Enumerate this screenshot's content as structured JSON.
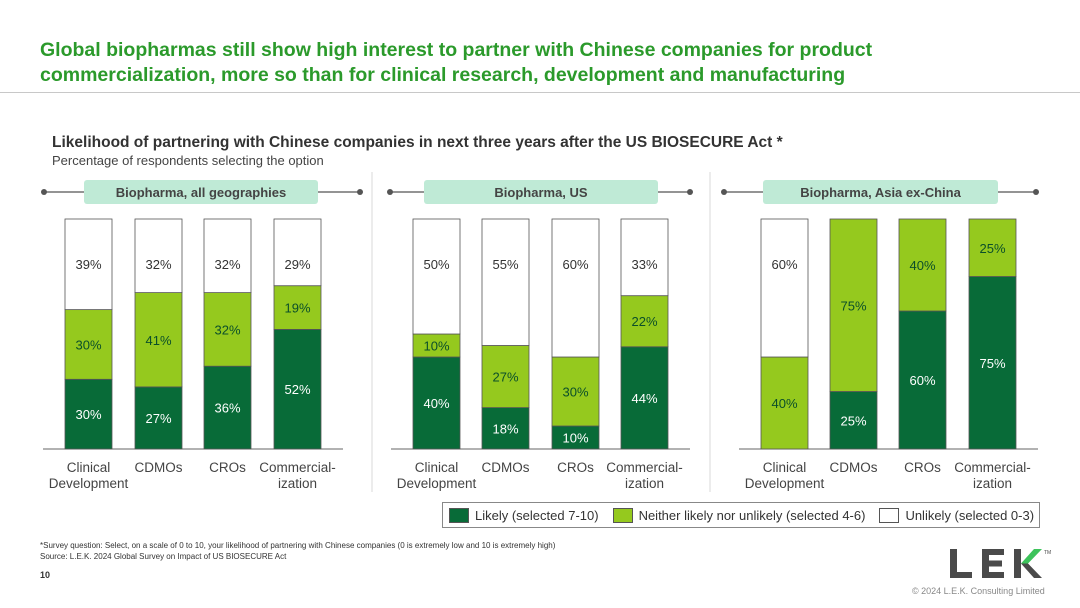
{
  "page": {
    "title": "Global biopharmas still show high interest to partner with Chinese companies for product commercialization, more so than for clinical research, development and manufacturing",
    "page_number": "10",
    "footnote": "*Survey question: Select, on a scale of 0 to 10, your likelihood of partnering with Chinese companies (0 is extremely low and 10 is extremely high)",
    "source": "Source:  L.E.K. 2024 Global Survey on Impact of US BIOSECURE Act",
    "copyright": "© 2024 L.E.K. Consulting Limited",
    "logo": "LEK",
    "logo_tm": "TM"
  },
  "chart_data": {
    "type": "bar",
    "stacked": true,
    "title": "Likelihood of partnering with Chinese companies in next three years after the US BIOSECURE Act *",
    "subtitle": "Percentage of respondents selecting the option",
    "ylim": [
      0,
      100
    ],
    "colors": {
      "likely": "#086b38",
      "neither": "#95c91e",
      "unlikely": "#ffffff",
      "panel_label_bg": "#bfead6",
      "title_green": "#2b9a2b"
    },
    "legend": [
      {
        "key": "likely",
        "label": "Likely (selected 7-10)"
      },
      {
        "key": "neither",
        "label": "Neither likely nor unlikely (selected 4-6)"
      },
      {
        "key": "unlikely",
        "label": "Unlikely (selected 0-3)"
      }
    ],
    "panels": [
      {
        "name": "Biopharma, all geographies",
        "categories": [
          [
            "Clinical",
            "Development"
          ],
          [
            "CDMOs"
          ],
          [
            "CROs"
          ],
          [
            "Commercial-",
            "ization"
          ]
        ],
        "series": [
          {
            "name": "Likely (selected 7-10)",
            "values": [
              30,
              27,
              36,
              52
            ]
          },
          {
            "name": "Neither likely nor unlikely (selected 4-6)",
            "values": [
              30,
              41,
              32,
              19
            ]
          },
          {
            "name": "Unlikely (selected 0-3)",
            "values": [
              39,
              32,
              32,
              29
            ]
          }
        ]
      },
      {
        "name": "Biopharma, US",
        "categories": [
          [
            "Clinical",
            "Development"
          ],
          [
            "CDMOs"
          ],
          [
            "CROs"
          ],
          [
            "Commercial-",
            "ization"
          ]
        ],
        "series": [
          {
            "name": "Likely (selected 7-10)",
            "values": [
              40,
              18,
              10,
              44
            ]
          },
          {
            "name": "Neither likely nor unlikely (selected 4-6)",
            "values": [
              10,
              27,
              30,
              22
            ]
          },
          {
            "name": "Unlikely (selected 0-3)",
            "values": [
              50,
              55,
              60,
              33
            ]
          }
        ]
      },
      {
        "name": "Biopharma, Asia ex-China",
        "categories": [
          [
            "Clinical",
            "Development"
          ],
          [
            "CDMOs"
          ],
          [
            "CROs"
          ],
          [
            "Commercial-",
            "ization"
          ]
        ],
        "series": [
          {
            "name": "Likely (selected 7-10)",
            "values": [
              0,
              25,
              60,
              75
            ]
          },
          {
            "name": "Neither likely nor unlikely (selected 4-6)",
            "values": [
              40,
              75,
              40,
              25
            ]
          },
          {
            "name": "Unlikely (selected 0-3)",
            "values": [
              60,
              0,
              0,
              0
            ]
          }
        ]
      }
    ]
  }
}
